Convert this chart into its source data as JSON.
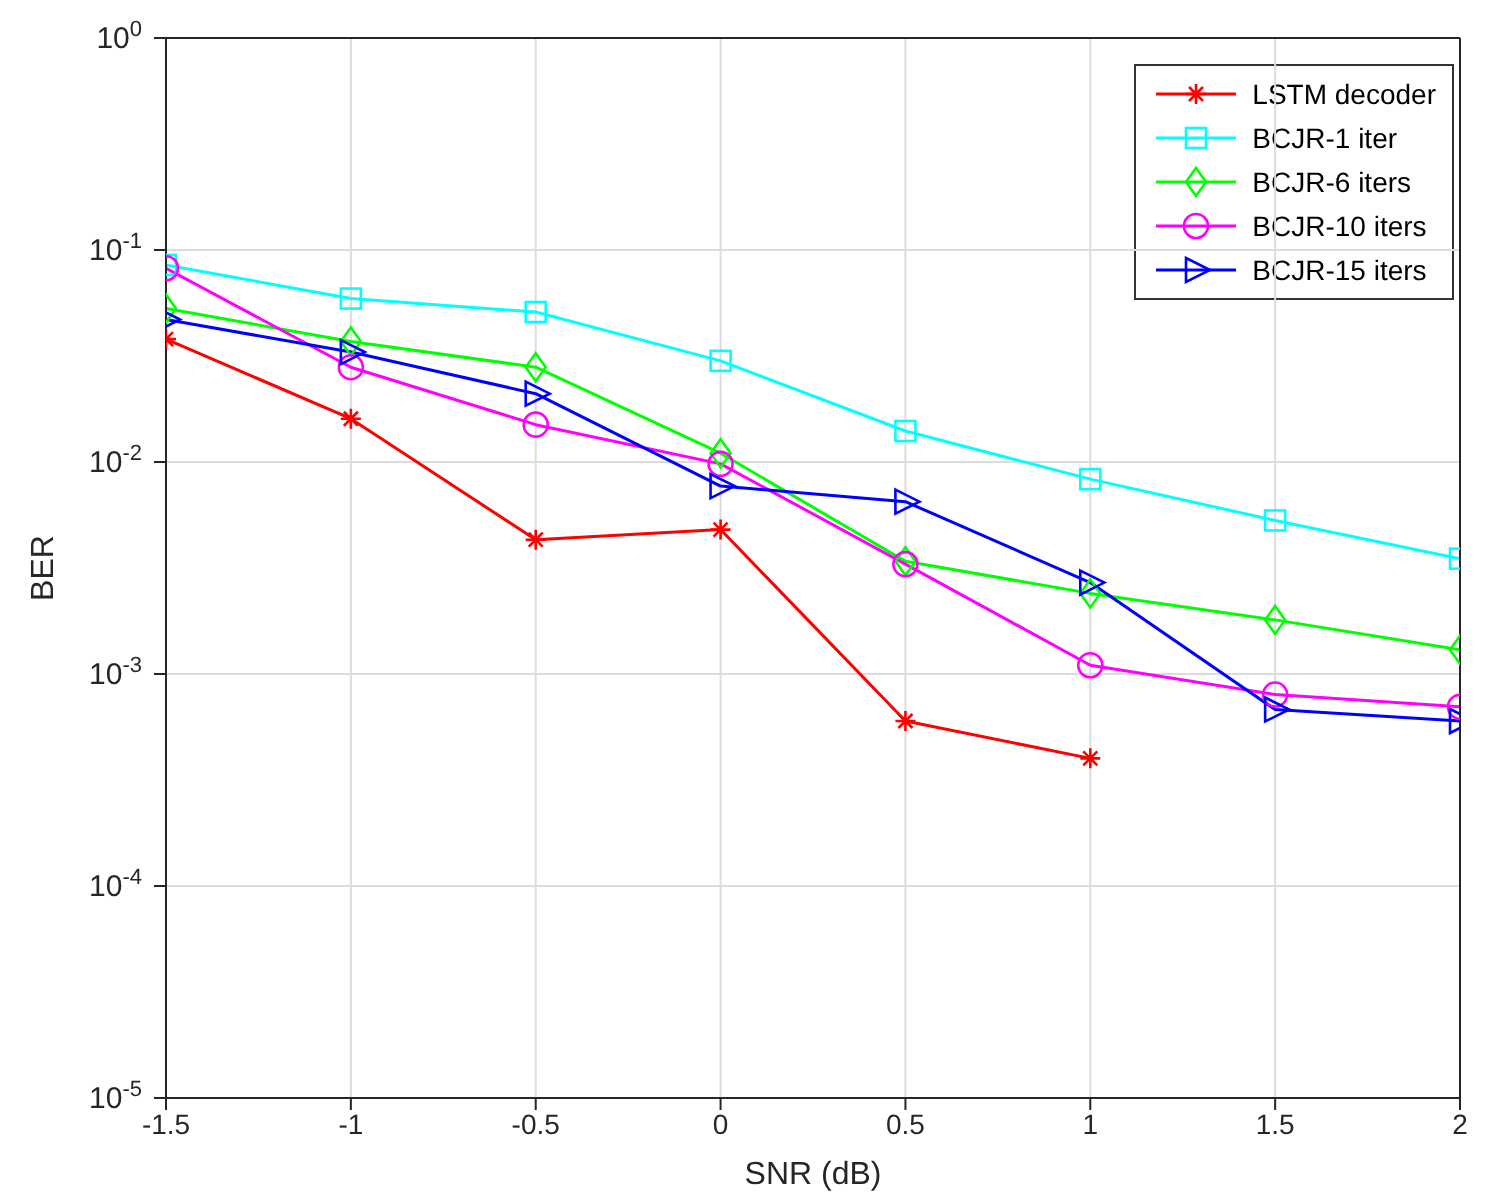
{
  "chart_data": {
    "type": "line",
    "xlabel": "SNR (dB)",
    "ylabel": "BER",
    "x": [
      -1.5,
      -1,
      -0.5,
      0,
      0.5,
      1,
      1.5,
      2
    ],
    "series": [
      {
        "name": "LSTM decoder",
        "color": "#ff0000",
        "marker": "cross",
        "values": [
          0.038,
          0.016,
          0.0043,
          0.0048,
          0.0006,
          0.0004,
          null,
          null
        ]
      },
      {
        "name": "BCJR-1 iter",
        "color": "#00ffff",
        "marker": "square",
        "values": [
          0.085,
          0.059,
          0.051,
          0.03,
          0.014,
          0.0083,
          0.0053,
          0.0035
        ]
      },
      {
        "name": "BCJR-6 iters",
        "color": "#00ff00",
        "marker": "diamond",
        "values": [
          0.053,
          0.037,
          0.028,
          0.011,
          0.0034,
          0.0024,
          0.0018,
          0.0013
        ]
      },
      {
        "name": "BCJR-10 iters",
        "color": "#ff00ff",
        "marker": "circle",
        "values": [
          0.082,
          0.028,
          0.015,
          0.0098,
          0.0033,
          0.0011,
          0.0008,
          0.0007
        ]
      },
      {
        "name": "BCJR-15 iters",
        "color": "#0000ff",
        "marker": "triangle",
        "values": [
          0.047,
          0.033,
          0.021,
          0.0077,
          0.0065,
          0.0027,
          0.00068,
          0.0006
        ]
      }
    ],
    "xlim": [
      -1.5,
      2
    ],
    "xticks": [
      -1.5,
      -1,
      -0.5,
      0,
      0.5,
      1,
      1.5,
      2
    ],
    "ylim": [
      1e-05,
      1
    ],
    "yticks": [
      {
        "value": 1e-05,
        "label": "10$^{-5}$"
      },
      {
        "value": 0.0001,
        "label": "10$^{-4}$"
      },
      {
        "value": 0.001,
        "label": "10$^{-3}$"
      },
      {
        "value": 0.01,
        "label": "10$^{-2}$"
      },
      {
        "value": 0.1,
        "label": "10$^{-1}$"
      },
      {
        "value": 1,
        "label": "10$^{0}$"
      }
    ],
    "log": true,
    "grid": true,
    "legend": "top right",
    "line_style": "solid"
  }
}
